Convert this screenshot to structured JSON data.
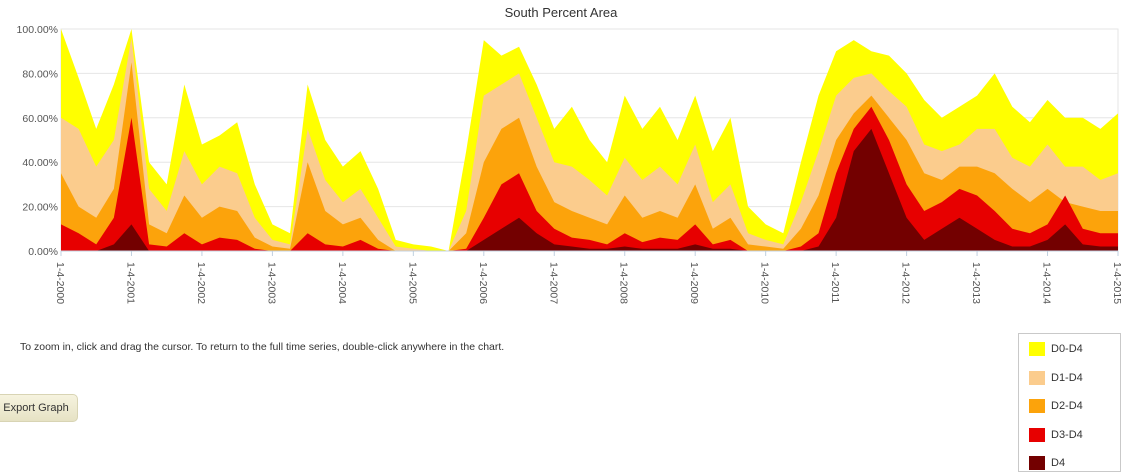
{
  "chart_data": {
    "type": "area",
    "title": "South Percent Area",
    "xlabel": "",
    "ylabel": "",
    "ylim": [
      0,
      100
    ],
    "y_ticks": [
      "0.00%",
      "20.00%",
      "40.00%",
      "60.00%",
      "80.00%",
      "100.00%"
    ],
    "x_ticks": [
      "1-4-2000",
      "1-4-2001",
      "1-4-2002",
      "1-4-2003",
      "1-4-2004",
      "1-4-2005",
      "1-4-2006",
      "1-4-2007",
      "1-4-2008",
      "1-4-2009",
      "1-4-2010",
      "1-4-2011",
      "1-4-2012",
      "1-4-2013",
      "1-4-2014",
      "1-4-2015"
    ],
    "x": [
      "2000-01",
      "2000-04",
      "2000-07",
      "2000-10",
      "2001-01",
      "2001-04",
      "2001-07",
      "2001-10",
      "2002-01",
      "2002-04",
      "2002-07",
      "2002-10",
      "2003-01",
      "2003-04",
      "2003-07",
      "2003-10",
      "2004-01",
      "2004-04",
      "2004-07",
      "2004-10",
      "2005-01",
      "2005-04",
      "2005-07",
      "2005-10",
      "2006-01",
      "2006-04",
      "2006-07",
      "2006-10",
      "2007-01",
      "2007-04",
      "2007-07",
      "2007-10",
      "2008-01",
      "2008-04",
      "2008-07",
      "2008-10",
      "2009-01",
      "2009-04",
      "2009-07",
      "2009-10",
      "2010-01",
      "2010-04",
      "2010-07",
      "2010-10",
      "2011-01",
      "2011-04",
      "2011-07",
      "2011-10",
      "2012-01",
      "2012-04",
      "2012-07",
      "2012-10",
      "2013-01",
      "2013-04",
      "2013-07",
      "2013-10",
      "2014-01",
      "2014-04",
      "2014-07",
      "2014-10",
      "2015-01"
    ],
    "series": [
      {
        "name": "D0-D4",
        "color": "#ffff00",
        "values": [
          100,
          78,
          55,
          75,
          100,
          40,
          30,
          75,
          48,
          52,
          58,
          30,
          12,
          8,
          75,
          50,
          38,
          45,
          28,
          5,
          3,
          2,
          0,
          45,
          95,
          88,
          92,
          75,
          55,
          65,
          50,
          40,
          70,
          55,
          65,
          50,
          70,
          45,
          60,
          20,
          12,
          8,
          40,
          70,
          90,
          95,
          90,
          88,
          80,
          68,
          60,
          65,
          70,
          80,
          65,
          58,
          68,
          60,
          60,
          55,
          62
        ]
      },
      {
        "name": "D1-D4",
        "color": "#fbcc8d",
        "values": [
          60,
          55,
          38,
          50,
          96,
          28,
          18,
          45,
          30,
          38,
          35,
          15,
          5,
          3,
          55,
          32,
          22,
          28,
          15,
          2,
          1,
          0,
          0,
          18,
          70,
          75,
          80,
          60,
          40,
          38,
          32,
          25,
          42,
          32,
          38,
          30,
          48,
          22,
          30,
          8,
          5,
          3,
          22,
          45,
          70,
          78,
          80,
          72,
          65,
          48,
          45,
          48,
          55,
          55,
          42,
          38,
          48,
          38,
          38,
          32,
          35
        ]
      },
      {
        "name": "D2-D4",
        "color": "#fca30b",
        "values": [
          35,
          20,
          15,
          28,
          85,
          12,
          8,
          25,
          15,
          20,
          18,
          6,
          2,
          1,
          40,
          18,
          12,
          15,
          5,
          0,
          0,
          0,
          0,
          8,
          40,
          55,
          60,
          38,
          22,
          18,
          15,
          12,
          25,
          15,
          18,
          15,
          30,
          10,
          15,
          3,
          2,
          1,
          10,
          25,
          50,
          62,
          70,
          60,
          50,
          35,
          32,
          38,
          38,
          35,
          28,
          22,
          28,
          22,
          20,
          18,
          18
        ]
      },
      {
        "name": "D3-D4",
        "color": "#e70000",
        "values": [
          12,
          8,
          3,
          15,
          60,
          3,
          2,
          8,
          3,
          6,
          5,
          1,
          0,
          0,
          8,
          3,
          2,
          5,
          1,
          0,
          0,
          0,
          0,
          1,
          15,
          30,
          35,
          18,
          10,
          6,
          5,
          3,
          8,
          4,
          6,
          5,
          12,
          3,
          5,
          0,
          0,
          0,
          2,
          8,
          35,
          55,
          65,
          50,
          30,
          18,
          22,
          28,
          25,
          18,
          10,
          8,
          12,
          25,
          10,
          8,
          8
        ]
      },
      {
        "name": "D4",
        "color": "#730000",
        "values": [
          0,
          0,
          0,
          3,
          12,
          0,
          0,
          0,
          0,
          0,
          0,
          0,
          0,
          0,
          0,
          0,
          0,
          0,
          0,
          0,
          0,
          0,
          0,
          0,
          5,
          10,
          15,
          8,
          3,
          2,
          1,
          1,
          2,
          1,
          1,
          1,
          3,
          1,
          1,
          0,
          0,
          0,
          0,
          2,
          15,
          45,
          55,
          35,
          15,
          5,
          10,
          15,
          10,
          5,
          2,
          2,
          5,
          12,
          3,
          2,
          2
        ]
      }
    ],
    "legend_position": "bottom-right",
    "grid": true
  },
  "instructions": "To zoom in, click and drag the cursor. To return to the full time series, double-click anywhere in the chart.",
  "export_label": "Export Graph",
  "legend": [
    {
      "label": "D0-D4",
      "color": "#ffff00"
    },
    {
      "label": "D1-D4",
      "color": "#fbcc8d"
    },
    {
      "label": "D2-D4",
      "color": "#fca30b"
    },
    {
      "label": "D3-D4",
      "color": "#e70000"
    },
    {
      "label": "D4",
      "color": "#730000"
    }
  ]
}
